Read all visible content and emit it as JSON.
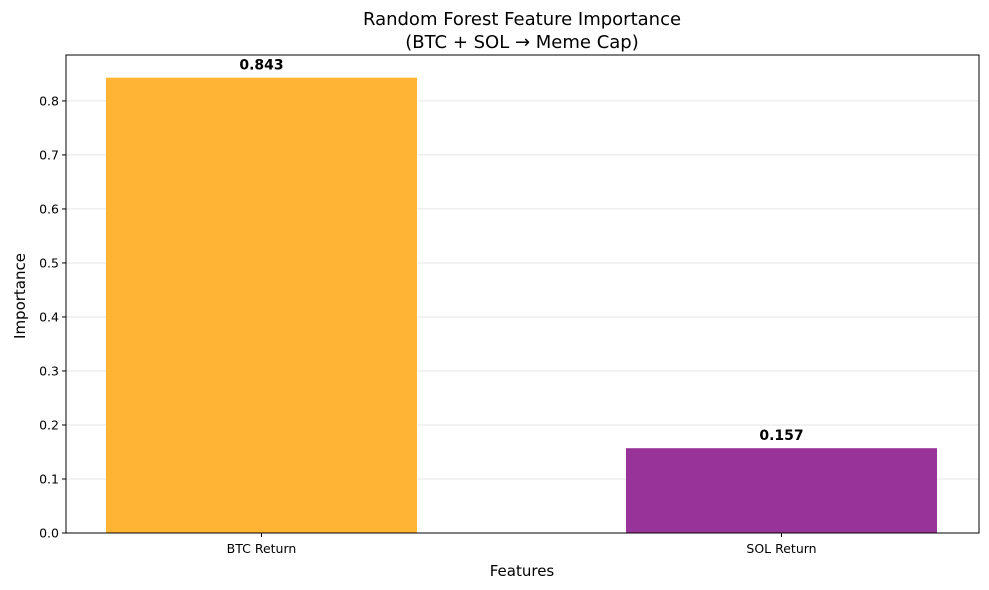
{
  "chart_data": {
    "type": "bar",
    "title_lines": [
      "Random Forest Feature Importance",
      "(BTC + SOL → Meme Cap)"
    ],
    "xlabel": "Features",
    "ylabel": "Importance",
    "categories": [
      "BTC Return",
      "SOL Return"
    ],
    "values": [
      0.843,
      0.157
    ],
    "value_labels": [
      "0.843",
      "0.157"
    ],
    "colors": [
      "#FFB533",
      "#973399"
    ],
    "ylim": [
      0,
      0.885
    ],
    "yticks": [
      0.0,
      0.1,
      0.2,
      0.3,
      0.4,
      0.5,
      0.6,
      0.7,
      0.8
    ],
    "ytick_labels": [
      "0.0",
      "0.1",
      "0.2",
      "0.3",
      "0.4",
      "0.5",
      "0.6",
      "0.7",
      "0.8"
    ],
    "grid": "y",
    "legend": "none"
  }
}
